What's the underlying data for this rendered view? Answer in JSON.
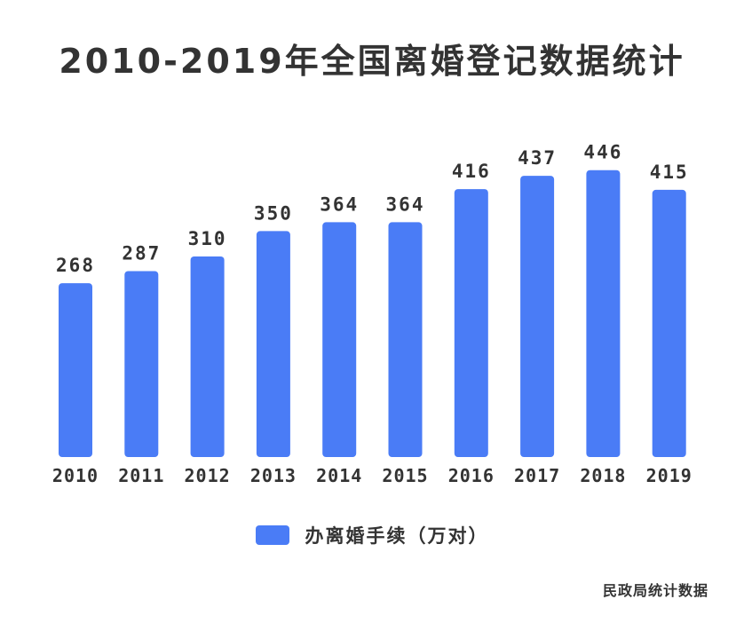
{
  "chart_data": {
    "type": "bar",
    "title": "2010-2019年全国离婚登记数据统计",
    "categories": [
      "2010",
      "2011",
      "2012",
      "2013",
      "2014",
      "2015",
      "2016",
      "2017",
      "2018",
      "2019"
    ],
    "series": [
      {
        "name": "办离婚手续（万对）",
        "values": [
          268,
          287,
          310,
          350,
          364,
          364,
          416,
          437,
          446,
          415
        ]
      }
    ],
    "data_labels": [
      "268",
      "287",
      "310",
      "350",
      "364",
      "364",
      "416",
      "437",
      "446",
      "415"
    ],
    "xlabel": "",
    "ylabel": "",
    "ylim": [
      0,
      500
    ],
    "grid": false,
    "legend_position": "bottom-center",
    "bar_color": "#4a7cf6",
    "text_color": "#333333"
  },
  "source": "民政局统计数据"
}
